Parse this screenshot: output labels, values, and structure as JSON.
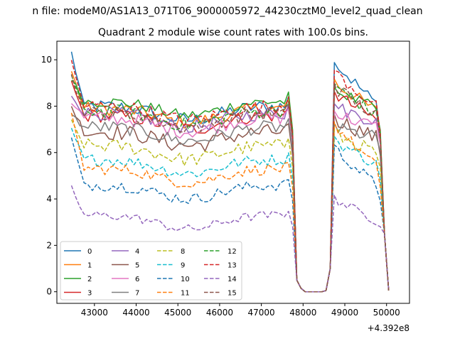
{
  "chart_data": {
    "type": "line",
    "suptitle": "n file: modeM0/AS1A13_071T06_9000005972_44230cztM0_level2_quad_clean",
    "title": "Quadrant 2 module wise count rates with 100.0s bins.",
    "xlabel": "",
    "ylabel": "",
    "offset_text": "+4.392e8",
    "x_offset": 439200000,
    "xlim": [
      42100,
      50550
    ],
    "ylim": [
      -0.5,
      10.8
    ],
    "x_ticks": [
      43000,
      44000,
      45000,
      46000,
      47000,
      48000,
      49000,
      50000
    ],
    "x_tick_labels": [
      "43000",
      "44000",
      "45000",
      "46000",
      "47000",
      "48000",
      "49000",
      "50000"
    ],
    "y_ticks": [
      0,
      2,
      4,
      6,
      8,
      10
    ],
    "y_tick_labels": [
      "0",
      "2",
      "4",
      "6",
      "8",
      "10"
    ],
    "grid": false,
    "legend_position": "lower-left",
    "legend_columns": 4,
    "x_start": 42450,
    "x_step": 100,
    "segments": [
      {
        "start": 0,
        "end": 12
      },
      {
        "start": 12,
        "end": 52
      },
      {
        "start": 52,
        "end": 77
      }
    ],
    "series": [
      {
        "name": "0",
        "color": "#1f77b4",
        "dash": "solid",
        "base": 8.0,
        "start": 10.3,
        "noise": 0.3
      },
      {
        "name": "1",
        "color": "#ff7f0e",
        "dash": "solid",
        "base": 7.9,
        "start": 9.5,
        "noise": 0.3
      },
      {
        "name": "2",
        "color": "#2ca02c",
        "dash": "solid",
        "base": 8.2,
        "start": 9.2,
        "noise": 0.25
      },
      {
        "name": "3",
        "color": "#d62728",
        "dash": "solid",
        "base": 7.6,
        "start": 9.0,
        "noise": 0.3
      },
      {
        "name": "4",
        "color": "#9467bd",
        "dash": "solid",
        "base": 7.7,
        "start": 8.5,
        "noise": 0.3
      },
      {
        "name": "5",
        "color": "#8c564b",
        "dash": "solid",
        "base": 6.9,
        "start": 8.0,
        "noise": 0.35
      },
      {
        "name": "6",
        "color": "#e377c2",
        "dash": "solid",
        "base": 7.5,
        "start": 8.2,
        "noise": 0.3
      },
      {
        "name": "7",
        "color": "#7f7f7f",
        "dash": "solid",
        "base": 7.1,
        "start": 7.6,
        "noise": 0.3
      },
      {
        "name": "8",
        "color": "#bcbd22",
        "dash": "dashed",
        "base": 6.3,
        "start": 7.3,
        "noise": 0.3
      },
      {
        "name": "9",
        "color": "#17becf",
        "dash": "dashed",
        "base": 5.7,
        "start": 7.0,
        "noise": 0.25
      },
      {
        "name": "10",
        "color": "#1f77b4",
        "dash": "dashed",
        "base": 4.6,
        "start": 6.6,
        "noise": 0.25
      },
      {
        "name": "11",
        "color": "#ff7f0e",
        "dash": "dashed",
        "base": 5.3,
        "start": 7.6,
        "noise": 0.25
      },
      {
        "name": "12",
        "color": "#2ca02c",
        "dash": "dashed",
        "base": 7.8,
        "start": 9.3,
        "noise": 0.3
      },
      {
        "name": "13",
        "color": "#d62728",
        "dash": "dashed",
        "base": 8.0,
        "start": 9.9,
        "noise": 0.3
      },
      {
        "name": "14",
        "color": "#9467bd",
        "dash": "dashed",
        "base": 3.3,
        "start": 4.5,
        "noise": 0.2
      },
      {
        "name": "15",
        "color": "#8c564b",
        "dash": "dashed",
        "base": 7.7,
        "start": 9.3,
        "noise": 0.3
      }
    ]
  }
}
